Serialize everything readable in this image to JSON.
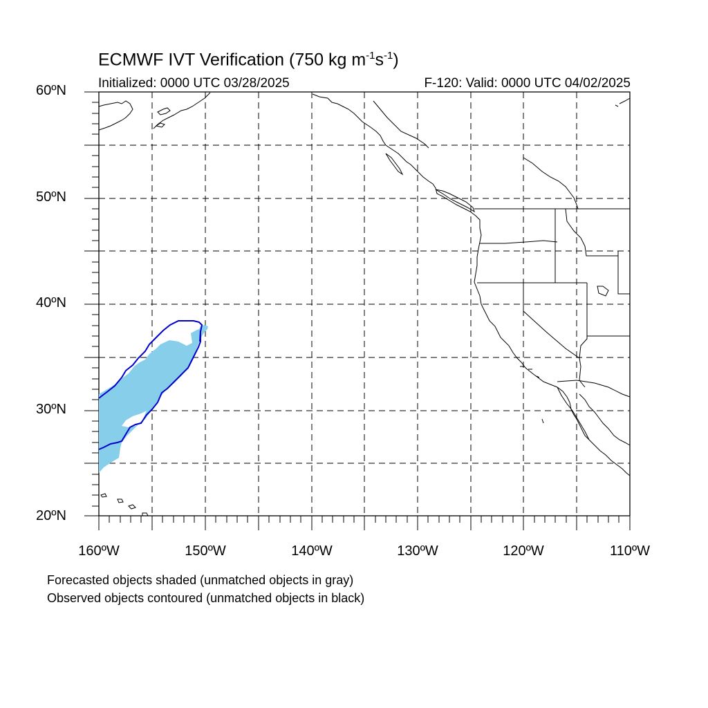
{
  "title": {
    "main": "ECMWF IVT Verification (750 kg m",
    "exp1": "-1",
    "mid": "s",
    "exp2": "-1",
    "tail": ")"
  },
  "init_label": "Initialized: 0000 UTC 03/28/2025",
  "valid_label": "F-120: Valid: 0000 UTC 04/02/2025",
  "lat_labels": [
    "60ºN",
    "50ºN",
    "40ºN",
    "30ºN",
    "20ºN"
  ],
  "lon_labels": [
    "160ºW",
    "150ºW",
    "140ºW",
    "130ºW",
    "120ºW",
    "110ºW"
  ],
  "notes": [
    "Forecasted objects shaded (unmatched objects in gray)",
    "Observed objects contoured (unmatched objects in black)"
  ],
  "colors": {
    "forecast_fill": "#87CEEB",
    "observed_contour": "#0000CD",
    "coastline": "#000000",
    "grid": "#000000"
  },
  "map_extent": {
    "lon_min": -160,
    "lon_max": -110,
    "lat_min": 20,
    "lat_max": 60
  }
}
